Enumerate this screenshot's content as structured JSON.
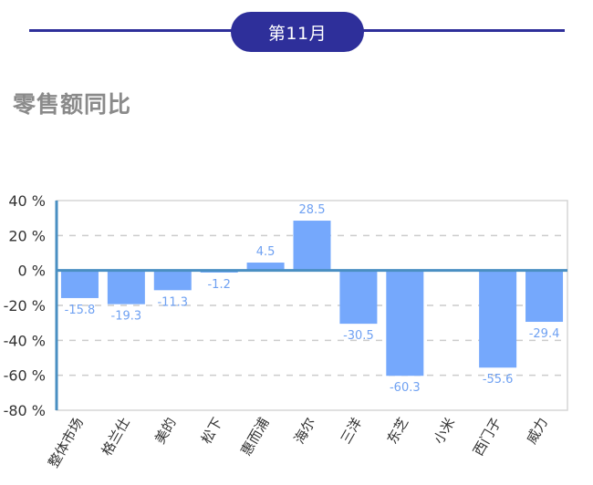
{
  "header": {
    "month_label": "第11月"
  },
  "section": {
    "title": "零售额同比"
  },
  "colors": {
    "accent": "#2e2f9a",
    "bar": "#75a8fc",
    "value_label": "#6fa1f2",
    "axis": "#4a8fc2",
    "grid": "#cccccc"
  },
  "chart_data": {
    "type": "bar",
    "title": "零售额同比",
    "xlabel": "",
    "ylabel": "",
    "categories": [
      "整体市场",
      "格兰仕",
      "美的",
      "松下",
      "惠而浦",
      "海尔",
      "三洋",
      "东芝",
      "小米",
      "西门子",
      "威力"
    ],
    "values": [
      -15.8,
      -19.3,
      -11.3,
      -1.2,
      4.5,
      28.5,
      -30.5,
      -60.3,
      null,
      -55.6,
      -29.4
    ],
    "value_labels": [
      "-15.8",
      "-19.3",
      "-11.3",
      "-1.2",
      "4.5",
      "28.5",
      "-30.5",
      "-60.3",
      "",
      "-55.6",
      "-29.4"
    ],
    "ylim": [
      -80,
      40
    ],
    "yticks": [
      40,
      20,
      0,
      -20,
      -40,
      -60,
      -80
    ],
    "ytick_labels": [
      "40 %",
      "20 %",
      "0 %",
      "-20 %",
      "-40 %",
      "-60 %",
      "-80 %"
    ],
    "grid": true,
    "grid_style": "dashed horizontal",
    "legend": "none"
  }
}
